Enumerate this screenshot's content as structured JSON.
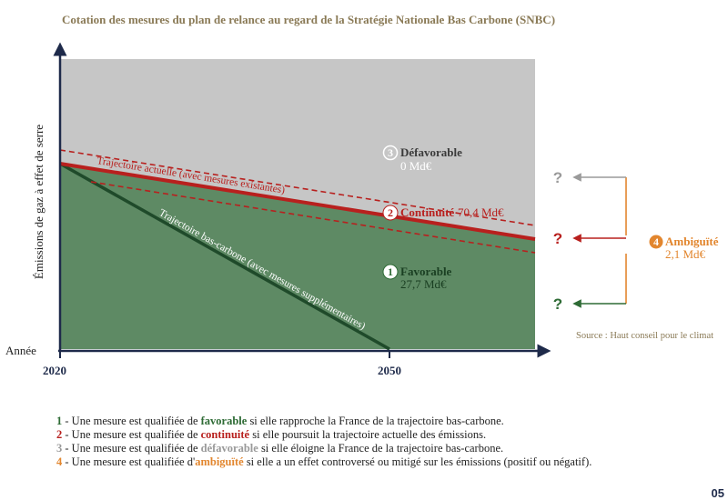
{
  "page": {
    "title": "Cotation des mesures du plan de relance au regard de la Stratégie Nationale Bas Carbone (SNBC)",
    "source": "Source : Haut conseil pour le climat",
    "page_number": "05"
  },
  "colors": {
    "title": "#8a7a56",
    "axis": "#1e2a4a",
    "defavorable_zone": "#c6c6c6",
    "favorable_zone": "#5e8a64",
    "trajectoire_bas_carbone": "#1f4a2a",
    "trajectoire_actuelle": "#b8201e",
    "favorable": "#2e6b35",
    "continuite": "#b8201e",
    "defavorable": "#9a9a9a",
    "ambiguite": "#e2862e"
  },
  "chart_data": {
    "type": "area",
    "xlabel": "Année",
    "ylabel": "Émissions de gaz à effet de serre",
    "x_ticks": [
      "2020",
      "2050"
    ],
    "trajectories": [
      {
        "name": "Trajectoire actuelle (avec mesures existantes)"
      },
      {
        "name": "Trajectoire bas-carbone (avec mesures supplémentaires)"
      }
    ],
    "zones": [
      {
        "id": 3,
        "label": "Défavorable",
        "value": "0 Md€"
      },
      {
        "id": 2,
        "label": "Continuité",
        "value": "70,4 Md€"
      },
      {
        "id": 1,
        "label": "Favorable",
        "value": "27,7 Md€"
      },
      {
        "id": 4,
        "label": "Ambiguïté",
        "value": "2,1 Md€"
      }
    ],
    "question_mark": "?"
  },
  "legend": [
    {
      "num": "1",
      "before": " - Une mesure est qualifiée de ",
      "keyword": "favorable",
      "after": " si elle rapproche la France de la trajectoire bas-carbone."
    },
    {
      "num": "2",
      "before": " - Une mesure est qualifiée de ",
      "keyword": "continuité",
      "after": " si elle poursuit la trajectoire actuelle des émissions."
    },
    {
      "num": "3",
      "before": " - Une mesure est qualifiée de ",
      "keyword": "défavorable",
      "after": " si elle éloigne la France de la trajectoire bas-carbone."
    },
    {
      "num": "4",
      "before": " - Une mesure est qualifiée d'",
      "keyword": "ambiguïté",
      "after": " si elle a un effet controversé ou mitigé sur les émissions (positif ou négatif)."
    }
  ]
}
